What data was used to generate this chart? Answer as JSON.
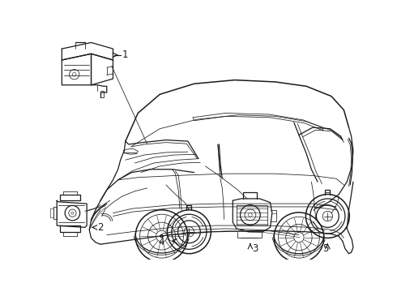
{
  "background_color": "#ffffff",
  "line_color": "#1a1a1a",
  "lw_main": 0.9,
  "lw_thin": 0.55,
  "lw_thick": 1.1,
  "fig_w": 4.9,
  "fig_h": 3.6,
  "dpi": 100,
  "xmax": 490,
  "ymax": 360,
  "label_fontsize": 8.5
}
